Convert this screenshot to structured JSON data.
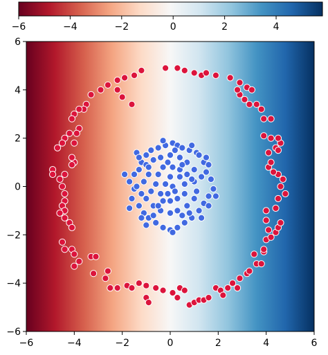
{
  "chart_data": {
    "type": "scatter",
    "title": "",
    "xlabel": "",
    "ylabel": "",
    "xlim": [
      -6,
      6
    ],
    "ylim": [
      -6,
      6
    ],
    "grid": false,
    "legend": "none",
    "x_ticks": [
      "−6",
      "−4",
      "−2",
      "0",
      "2",
      "4",
      "6"
    ],
    "y_ticks": [
      "−6",
      "−4",
      "−2",
      "0",
      "2",
      "4",
      "6"
    ],
    "background": {
      "type": "heatmap",
      "colormap": "RdBu",
      "varies_along": "x",
      "value_range": [
        -6,
        6
      ]
    },
    "colorbar": {
      "placement": "top",
      "range": [
        -6,
        5.8
      ],
      "ticks": [
        "−6",
        "−4",
        "−2",
        "0",
        "2",
        "4"
      ]
    },
    "series": [
      {
        "class": "outer ring",
        "color": "#dc143c",
        "note": "points on a circle of radius about 4.6 centred at origin",
        "points": [
          [
            -0.2,
            4.9
          ],
          [
            0.3,
            4.9
          ],
          [
            0.6,
            4.8
          ],
          [
            1.0,
            4.7
          ],
          [
            1.3,
            4.6
          ],
          [
            1.5,
            4.7
          ],
          [
            1.9,
            4.6
          ],
          [
            2.5,
            4.5
          ],
          [
            2.9,
            4.3
          ],
          [
            3.2,
            4.1
          ],
          [
            3.4,
            4.0
          ],
          [
            -1.2,
            4.8
          ],
          [
            -1.5,
            4.6
          ],
          [
            -1.9,
            4.5
          ],
          [
            -2.2,
            4.4
          ],
          [
            -2.6,
            4.2
          ],
          [
            -2.9,
            4.0
          ],
          [
            -3.3,
            3.8
          ],
          [
            -3.5,
            3.4
          ],
          [
            -3.6,
            3.2
          ],
          [
            -3.8,
            3.2
          ],
          [
            -4.0,
            3.0
          ],
          [
            -4.1,
            2.8
          ],
          [
            -3.8,
            2.4
          ],
          [
            -3.9,
            2.2
          ],
          [
            -4.2,
            2.2
          ],
          [
            -4.4,
            2.0
          ],
          [
            -4.5,
            1.8
          ],
          [
            -4.7,
            1.6
          ],
          [
            -4.0,
            1.8
          ],
          [
            -4.0,
            1.0
          ],
          [
            -4.1,
            1.2
          ],
          [
            -4.1,
            0.9
          ],
          [
            -4.4,
            0.5
          ],
          [
            -4.6,
            0.3
          ],
          [
            -4.9,
            0.7
          ],
          [
            -4.9,
            0.5
          ],
          [
            -4.5,
            0.0
          ],
          [
            -4.4,
            -0.3
          ],
          [
            -4.4,
            -0.6
          ],
          [
            -4.5,
            -0.8
          ],
          [
            -4.4,
            -1.0
          ],
          [
            -4.4,
            -1.3
          ],
          [
            -4.6,
            -1.1
          ],
          [
            -4.2,
            -1.5
          ],
          [
            -4.1,
            -1.7
          ],
          [
            -4.5,
            -2.3
          ],
          [
            -4.4,
            -2.6
          ],
          [
            -4.1,
            -2.6
          ],
          [
            -4.0,
            -2.8
          ],
          [
            -3.8,
            -3.1
          ],
          [
            -4.0,
            -3.3
          ],
          [
            -3.3,
            -2.9
          ],
          [
            -3.1,
            -2.9
          ],
          [
            -3.2,
            -3.6
          ],
          [
            -2.6,
            -3.5
          ],
          [
            -2.7,
            -3.8
          ],
          [
            -2.5,
            -4.2
          ],
          [
            -2.2,
            -4.2
          ],
          [
            -1.8,
            -4.1
          ],
          [
            -1.6,
            -4.2
          ],
          [
            -1.3,
            -4.0
          ],
          [
            -1.0,
            -4.1
          ],
          [
            -1.0,
            -4.6
          ],
          [
            -0.9,
            -4.8
          ],
          [
            -0.6,
            -4.2
          ],
          [
            -0.3,
            -4.3
          ],
          [
            0.1,
            -4.4
          ],
          [
            0.3,
            -4.6
          ],
          [
            0.4,
            -4.2
          ],
          [
            0.6,
            -4.3
          ],
          [
            0.8,
            -4.9
          ],
          [
            1.0,
            -4.8
          ],
          [
            1.2,
            -4.7
          ],
          [
            1.4,
            -4.7
          ],
          [
            1.6,
            -4.6
          ],
          [
            1.9,
            -4.2
          ],
          [
            2.1,
            -4.3
          ],
          [
            2.2,
            -4.5
          ],
          [
            2.4,
            -4.2
          ],
          [
            2.6,
            -4.0
          ],
          [
            2.8,
            -4.2
          ],
          [
            2.9,
            -3.8
          ],
          [
            3.2,
            -3.6
          ],
          [
            3.3,
            -3.5
          ],
          [
            3.6,
            -3.2
          ],
          [
            3.8,
            -3.2
          ],
          [
            3.5,
            -2.8
          ],
          [
            3.9,
            -2.7
          ],
          [
            3.9,
            -2.6
          ],
          [
            4.0,
            -2.2
          ],
          [
            4.2,
            -2.1
          ],
          [
            4.1,
            -1.8
          ],
          [
            4.4,
            -1.9
          ],
          [
            4.5,
            -1.7
          ],
          [
            4.6,
            -1.5
          ],
          [
            4.0,
            -1.4
          ],
          [
            4.0,
            -1.0
          ],
          [
            4.4,
            -0.9
          ],
          [
            4.5,
            -0.5
          ],
          [
            4.8,
            -0.3
          ],
          [
            4.6,
            0.0
          ],
          [
            4.7,
            0.3
          ],
          [
            4.5,
            0.5
          ],
          [
            4.3,
            0.6
          ],
          [
            4.1,
            0.8
          ],
          [
            4.2,
            1.0
          ],
          [
            4.1,
            1.4
          ],
          [
            4.4,
            1.6
          ],
          [
            4.5,
            1.5
          ],
          [
            4.6,
            1.8
          ],
          [
            4.5,
            2.0
          ],
          [
            4.2,
            2.0
          ],
          [
            3.9,
            2.1
          ],
          [
            4.2,
            2.8
          ],
          [
            3.9,
            2.8
          ],
          [
            3.8,
            3.2
          ],
          [
            3.6,
            3.4
          ],
          [
            3.3,
            3.4
          ],
          [
            3.1,
            3.6
          ],
          [
            2.9,
            3.8
          ],
          [
            2.8,
            4.0
          ],
          [
            -1.6,
            3.4
          ],
          [
            -2.0,
            3.7
          ],
          [
            -2.2,
            4.0
          ]
        ]
      },
      {
        "class": "inner cluster",
        "color": "#4169e1",
        "note": "points in a disc of radius about 1.9 centred at origin",
        "points": [
          [
            -0.2,
            1.7
          ],
          [
            0.1,
            1.8
          ],
          [
            0.3,
            1.7
          ],
          [
            0.5,
            1.6
          ],
          [
            0.8,
            1.5
          ],
          [
            1.1,
            1.4
          ],
          [
            -0.5,
            1.6
          ],
          [
            -0.8,
            1.5
          ],
          [
            -1.0,
            1.3
          ],
          [
            -1.2,
            1.0
          ],
          [
            -1.3,
            0.7
          ],
          [
            -1.5,
            0.5
          ],
          [
            -1.7,
            0.2
          ],
          [
            -1.5,
            -0.1
          ],
          [
            -1.6,
            -0.5
          ],
          [
            -1.3,
            -0.8
          ],
          [
            -1.1,
            -1.1
          ],
          [
            -0.9,
            -1.3
          ],
          [
            -0.6,
            -1.5
          ],
          [
            -0.3,
            -1.7
          ],
          [
            0.0,
            -1.8
          ],
          [
            0.3,
            -1.7
          ],
          [
            0.6,
            -1.5
          ],
          [
            0.9,
            -1.3
          ],
          [
            1.2,
            -1.0
          ],
          [
            1.4,
            -0.7
          ],
          [
            1.6,
            -0.4
          ],
          [
            1.8,
            -0.1
          ],
          [
            1.7,
            0.3
          ],
          [
            1.5,
            0.6
          ],
          [
            1.4,
            1.0
          ],
          [
            1.2,
            1.3
          ],
          [
            -0.7,
            1.1
          ],
          [
            -0.4,
            1.2
          ],
          [
            0.0,
            1.3
          ],
          [
            0.4,
            1.2
          ],
          [
            0.7,
            1.0
          ],
          [
            1.0,
            0.7
          ],
          [
            -1.0,
            0.9
          ],
          [
            -0.9,
            0.5
          ],
          [
            -1.1,
            0.2
          ],
          [
            -0.8,
            -0.2
          ],
          [
            -1.0,
            -0.5
          ],
          [
            -0.7,
            -0.8
          ],
          [
            -0.4,
            -1.0
          ],
          [
            0.0,
            -1.1
          ],
          [
            0.3,
            -1.0
          ],
          [
            0.7,
            -0.8
          ],
          [
            1.0,
            -0.5
          ],
          [
            1.1,
            -0.2
          ],
          [
            1.0,
            0.2
          ],
          [
            0.7,
            0.5
          ],
          [
            -0.3,
            0.8
          ],
          [
            0.1,
            0.8
          ],
          [
            0.4,
            0.7
          ],
          [
            -0.5,
            0.5
          ],
          [
            -0.6,
            0.1
          ],
          [
            -0.4,
            -0.3
          ],
          [
            -0.3,
            -0.6
          ],
          [
            0.0,
            -0.6
          ],
          [
            0.3,
            -0.5
          ],
          [
            0.6,
            -0.3
          ],
          [
            0.6,
            0.1
          ],
          [
            0.4,
            0.4
          ],
          [
            0.0,
            0.4
          ],
          [
            -0.2,
            0.1
          ],
          [
            0.1,
            0.0
          ],
          [
            0.2,
            -0.2
          ],
          [
            -0.1,
            -0.3
          ],
          [
            -1.9,
            0.5
          ],
          [
            -1.4,
            1.4
          ],
          [
            -0.3,
            1.9
          ],
          [
            0.9,
            1.7
          ],
          [
            1.6,
            0.9
          ],
          [
            1.9,
            -0.4
          ],
          [
            1.3,
            -1.3
          ],
          [
            0.1,
            -1.9
          ],
          [
            -1.0,
            -1.6
          ],
          [
            -1.7,
            -0.9
          ],
          [
            -1.2,
            -0.3
          ],
          [
            -0.7,
            -1.2
          ],
          [
            0.5,
            -1.2
          ],
          [
            1.3,
            0.4
          ],
          [
            0.2,
            1.5
          ],
          [
            -1.3,
            1.2
          ],
          [
            -0.9,
            0.8
          ],
          [
            0.9,
            0.3
          ],
          [
            -0.5,
            -0.8
          ],
          [
            0.8,
            -1.1
          ],
          [
            -1.4,
            0.0
          ],
          [
            1.6,
            -0.8
          ],
          [
            -0.1,
            1.0
          ],
          [
            0.5,
            0.9
          ],
          [
            -1.2,
            -1.3
          ],
          [
            1.5,
            1.2
          ]
        ]
      }
    ]
  }
}
